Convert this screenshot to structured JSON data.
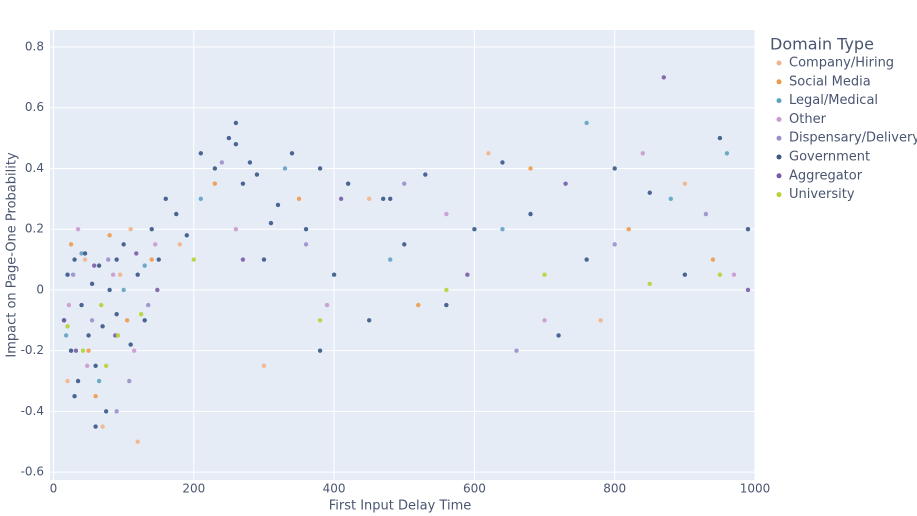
{
  "chart_data": {
    "type": "scatter",
    "x_label": "First Input Delay Time",
    "y_label": "Impact on Page-One Probability",
    "legend_title": "Domain Type",
    "legend_position": "right",
    "grid": true,
    "xlim": [
      -5,
      1000
    ],
    "ylim": [
      -0.626,
      0.856
    ],
    "xticks": [
      0,
      200,
      400,
      600,
      800,
      1000
    ],
    "yticks": [
      -0.6,
      -0.4,
      -0.2,
      0,
      0.2,
      0.4,
      0.6,
      0.8
    ],
    "series": [
      {
        "name": "Company/Hiring",
        "color": "#f2b48a",
        "x": [
          20,
          45,
          70,
          95,
          120,
          180,
          300,
          450,
          620,
          780,
          900,
          110
        ],
        "values": [
          -0.3,
          0.1,
          -0.45,
          0.05,
          -0.5,
          0.15,
          -0.25,
          0.3,
          0.45,
          -0.1,
          0.35,
          0.2
        ]
      },
      {
        "name": "Social Media",
        "color": "#ee9a4d",
        "x": [
          25,
          50,
          80,
          105,
          140,
          230,
          350,
          520,
          680,
          820,
          940,
          60
        ],
        "values": [
          0.15,
          -0.2,
          0.18,
          -0.1,
          0.1,
          0.35,
          0.3,
          -0.05,
          0.4,
          0.2,
          0.1,
          -0.35
        ]
      },
      {
        "name": "Legal/Medical",
        "color": "#5fa3c4",
        "x": [
          18,
          40,
          65,
          100,
          130,
          210,
          330,
          480,
          640,
          760,
          880,
          960
        ],
        "values": [
          -0.15,
          0.12,
          -0.3,
          0.0,
          0.08,
          0.3,
          0.4,
          0.1,
          0.2,
          0.55,
          0.3,
          0.45
        ]
      },
      {
        "name": "Other",
        "color": "#c99ad0",
        "x": [
          22,
          48,
          85,
          115,
          145,
          260,
          390,
          560,
          700,
          840,
          970,
          35
        ],
        "values": [
          -0.05,
          -0.25,
          0.05,
          -0.2,
          0.15,
          0.2,
          -0.05,
          0.25,
          -0.1,
          0.45,
          0.05,
          0.2
        ]
      },
      {
        "name": "Dispensary/Delivery",
        "color": "#9a8fcc",
        "x": [
          28,
          55,
          78,
          108,
          135,
          240,
          360,
          500,
          660,
          800,
          930,
          90
        ],
        "values": [
          0.05,
          -0.1,
          0.1,
          -0.3,
          -0.05,
          0.42,
          0.15,
          0.35,
          -0.2,
          0.15,
          0.25,
          -0.4
        ]
      },
      {
        "name": "Government",
        "color": "#3a5788",
        "x": [
          15,
          20,
          25,
          30,
          35,
          40,
          45,
          50,
          55,
          60,
          65,
          70,
          75,
          80,
          90,
          100,
          110,
          120,
          130,
          140,
          150,
          160,
          175,
          190,
          210,
          230,
          250,
          260,
          270,
          280,
          290,
          300,
          320,
          340,
          360,
          380,
          400,
          420,
          450,
          480,
          500,
          530,
          560,
          600,
          640,
          680,
          720,
          760,
          800,
          850,
          900,
          950,
          990,
          30,
          60,
          90,
          260,
          310,
          380,
          470
        ],
        "values": [
          -0.1,
          0.05,
          -0.2,
          0.1,
          -0.3,
          -0.05,
          0.12,
          -0.15,
          0.02,
          -0.25,
          0.08,
          -0.12,
          -0.4,
          0.0,
          -0.08,
          0.15,
          -0.18,
          0.05,
          -0.1,
          0.2,
          0.1,
          0.3,
          0.25,
          0.18,
          0.45,
          0.4,
          0.5,
          0.48,
          0.35,
          0.42,
          0.38,
          0.1,
          0.28,
          0.45,
          0.2,
          0.4,
          0.05,
          0.35,
          -0.1,
          0.3,
          0.15,
          0.38,
          -0.05,
          0.2,
          0.42,
          0.25,
          -0.15,
          0.1,
          0.4,
          0.32,
          0.05,
          0.5,
          0.2,
          -0.35,
          -0.45,
          0.1,
          0.55,
          0.22,
          -0.2,
          0.3
        ]
      },
      {
        "name": "Aggregator",
        "color": "#7a5ca8",
        "x": [
          32,
          58,
          88,
          118,
          148,
          270,
          410,
          590,
          730,
          870,
          990,
          15
        ],
        "values": [
          -0.2,
          0.08,
          -0.15,
          0.12,
          0.0,
          0.1,
          0.3,
          0.05,
          0.35,
          0.7,
          0.0,
          -0.1
        ]
      },
      {
        "name": "University",
        "color": "#b6d335",
        "x": [
          20,
          42,
          68,
          92,
          125,
          200,
          380,
          560,
          700,
          850,
          950,
          75
        ],
        "values": [
          -0.12,
          -0.2,
          -0.05,
          -0.15,
          -0.08,
          0.1,
          -0.1,
          0.0,
          0.05,
          0.02,
          0.05,
          -0.25
        ]
      }
    ]
  }
}
